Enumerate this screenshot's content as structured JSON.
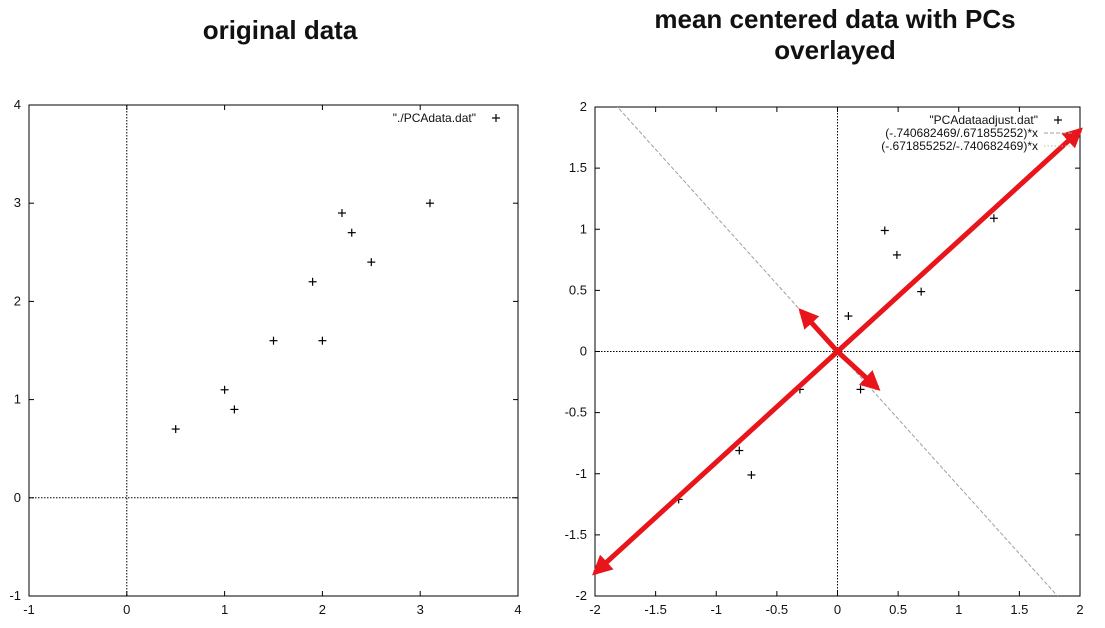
{
  "chart_data": [
    {
      "type": "scatter",
      "title": "original data",
      "xlim": [
        -1,
        4
      ],
      "ylim": [
        -1,
        4
      ],
      "xticks": [
        -1,
        0,
        1,
        2,
        3,
        4
      ],
      "yticks": [
        -1,
        0,
        1,
        2,
        3,
        4
      ],
      "grid": false,
      "legend_position": "top-right",
      "zero_axes": true,
      "series": [
        {
          "name": "\"./PCAdata.dat\"",
          "marker": "+",
          "x": [
            2.5,
            0.5,
            2.2,
            1.9,
            3.1,
            2.3,
            2.0,
            1.0,
            1.5,
            1.1
          ],
          "y": [
            2.4,
            0.7,
            2.9,
            2.2,
            3.0,
            2.7,
            1.6,
            1.1,
            1.6,
            0.9
          ]
        }
      ]
    },
    {
      "type": "scatter",
      "title": "mean centered data with PCs overlayed",
      "xlim": [
        -2,
        2
      ],
      "ylim": [
        -2,
        2
      ],
      "xticks": [
        -2,
        -1.5,
        -1,
        -0.5,
        0,
        0.5,
        1,
        1.5,
        2
      ],
      "yticks": [
        -2,
        -1.5,
        -1,
        -0.5,
        0,
        0.5,
        1,
        1.5,
        2
      ],
      "grid": false,
      "legend_position": "top-right",
      "zero_axes": true,
      "series": [
        {
          "name": "\"PCAdataadjust.dat\"",
          "marker": "+",
          "x": [
            0.69,
            -1.31,
            0.39,
            0.09,
            1.29,
            0.49,
            0.19,
            -0.81,
            -0.31,
            -0.71
          ],
          "y": [
            0.49,
            -1.21,
            0.99,
            0.29,
            1.09,
            0.79,
            -0.31,
            -0.81,
            -0.31,
            -1.01
          ]
        }
      ],
      "lines": [
        {
          "name": "(-.740682469/.671855252)*x",
          "slope": -1.1024,
          "style": "dashed",
          "color": "#a0a0a0"
        },
        {
          "name": "(-.671855252/-.740682469)*x",
          "slope": 0.9071,
          "style": "dotted",
          "color": "#b8b8b8"
        }
      ],
      "arrows": [
        {
          "from": [
            0,
            0
          ],
          "to": [
            2,
            1.81
          ],
          "color": "#e8151b"
        },
        {
          "from": [
            0,
            0
          ],
          "to": [
            -2,
            -1.81
          ],
          "color": "#e8151b"
        },
        {
          "from": [
            0,
            0
          ],
          "to": [
            -0.3,
            0.33
          ],
          "color": "#e8151b"
        },
        {
          "from": [
            0,
            0
          ],
          "to": [
            0.33,
            -0.3
          ],
          "color": "#e8151b"
        }
      ]
    }
  ]
}
